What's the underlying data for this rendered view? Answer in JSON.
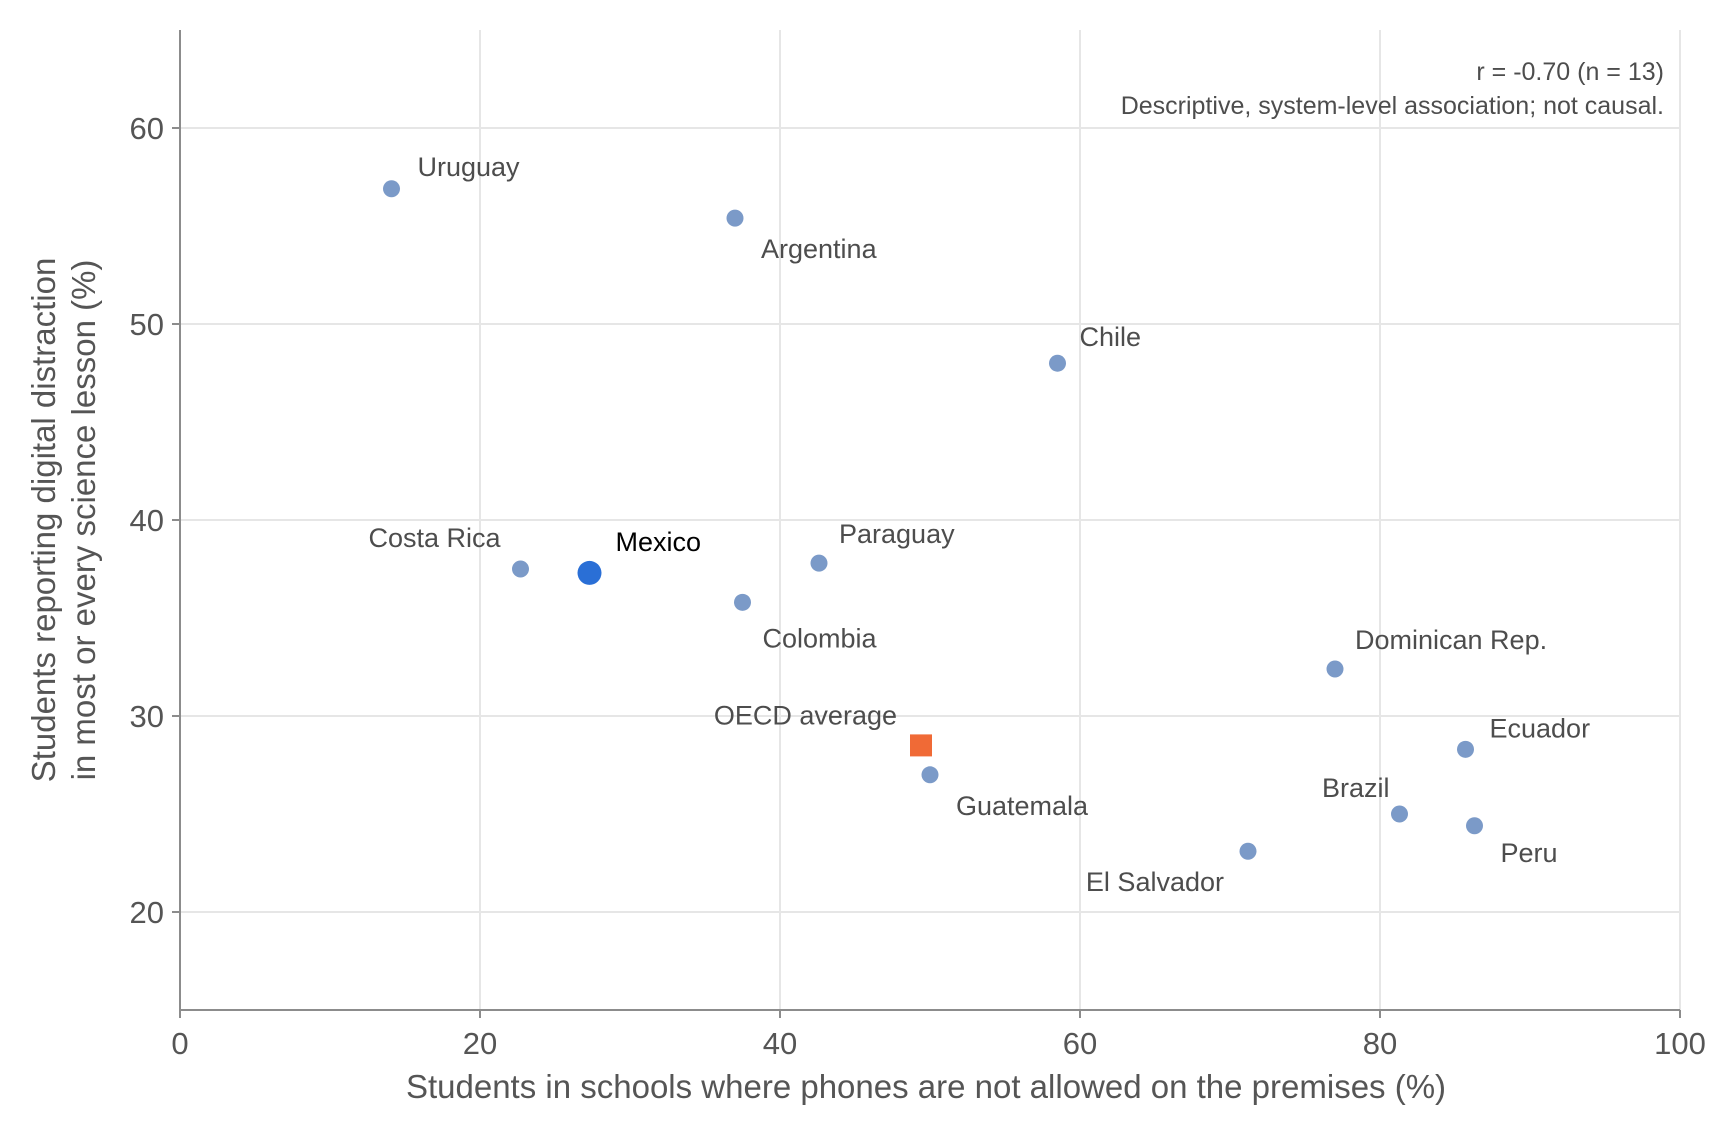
{
  "chart_data": {
    "type": "scatter",
    "xlabel": "Students in schools where phones are not allowed on the premises (%)",
    "ylabel": [
      "Students reporting digital distraction",
      "in most or every science lesson (%)"
    ],
    "xlim": [
      0,
      100
    ],
    "ylim": [
      15,
      65
    ],
    "x_ticks": [
      0,
      20,
      40,
      60,
      80,
      100
    ],
    "y_ticks": [
      20,
      30,
      40,
      50,
      60
    ],
    "grid": true,
    "annotations": [
      "r = -0.70 (n = 13)",
      "Descriptive, system-level association; not causal."
    ],
    "colors": {
      "country": "#7b9ac8",
      "highlight": "#2a6fd6",
      "oecd": "#f06a36"
    },
    "points": [
      {
        "label": "Uruguay",
        "x": 14.1,
        "y": 56.9,
        "kind": "country"
      },
      {
        "label": "Argentina",
        "x": 37.0,
        "y": 55.4,
        "kind": "country"
      },
      {
        "label": "Chile",
        "x": 58.5,
        "y": 48.0,
        "kind": "country"
      },
      {
        "label": "Costa Rica",
        "x": 22.7,
        "y": 37.5,
        "kind": "country"
      },
      {
        "label": "Mexico",
        "x": 27.3,
        "y": 37.3,
        "kind": "highlight"
      },
      {
        "label": "Paraguay",
        "x": 42.6,
        "y": 37.8,
        "kind": "country"
      },
      {
        "label": "Colombia",
        "x": 37.5,
        "y": 35.8,
        "kind": "country"
      },
      {
        "label": "Dominican Rep.",
        "x": 77.0,
        "y": 32.4,
        "kind": "country"
      },
      {
        "label": "OECD average",
        "x": 49.4,
        "y": 28.5,
        "kind": "oecd"
      },
      {
        "label": "Guatemala",
        "x": 50.0,
        "y": 27.0,
        "kind": "country"
      },
      {
        "label": "Ecuador",
        "x": 85.7,
        "y": 28.3,
        "kind": "country"
      },
      {
        "label": "Brazil",
        "x": 81.3,
        "y": 25.0,
        "kind": "country"
      },
      {
        "label": "Peru",
        "x": 86.3,
        "y": 24.4,
        "kind": "country"
      },
      {
        "label": "El Salvador",
        "x": 71.2,
        "y": 23.1,
        "kind": "country"
      }
    ]
  }
}
